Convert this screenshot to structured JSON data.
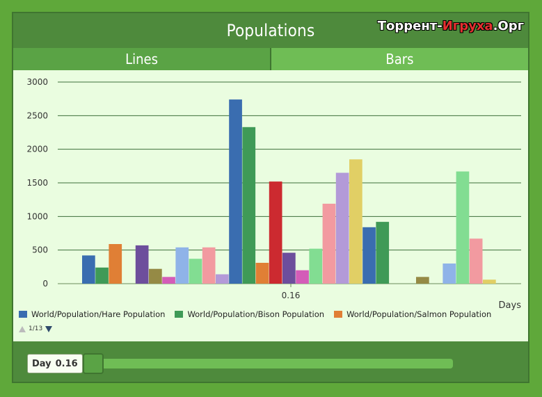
{
  "window": {
    "title": "Populations",
    "watermark_left": "Торрент-",
    "watermark_mid": "Игруха",
    "watermark_right": ".Орг"
  },
  "tabs": [
    {
      "label": "Lines"
    },
    {
      "label": "Bars"
    }
  ],
  "pager": {
    "text": "1/13"
  },
  "footer": {
    "day_label": "Day",
    "day_value": "0.16"
  },
  "slider": {
    "value_fraction": 0.0
  },
  "chart_data": {
    "type": "bar",
    "xlabel": "Days",
    "ylabel": "",
    "ylim": [
      0,
      3000
    ],
    "yticks": [
      0,
      500,
      1000,
      1500,
      2000,
      2500,
      3000
    ],
    "categories": [
      "0.16"
    ],
    "grid": true,
    "legend_position": "bottom-left",
    "legend": [
      {
        "name": "World/Population/Hare Population",
        "color": "#3a6db0"
      },
      {
        "name": "World/Population/Bison Population",
        "color": "#3f9a57"
      },
      {
        "name": "World/Population/Salmon Population",
        "color": "#e07f35"
      }
    ],
    "bars": [
      {
        "value": 420,
        "color": "#3a6db0"
      },
      {
        "value": 240,
        "color": "#3f9a57"
      },
      {
        "value": 590,
        "color": "#e07f35"
      },
      {
        "value": 0,
        "color": "#cc2a30"
      },
      {
        "value": 570,
        "color": "#6d4e9c"
      },
      {
        "value": 220,
        "color": "#958a45"
      },
      {
        "value": 100,
        "color": "#d45cb8"
      },
      {
        "value": 540,
        "color": "#8fb3e8"
      },
      {
        "value": 370,
        "color": "#82dd92"
      },
      {
        "value": 540,
        "color": "#f29aa0"
      },
      {
        "value": 140,
        "color": "#b39ad8"
      },
      {
        "value": 2740,
        "color": "#3a6db0"
      },
      {
        "value": 2330,
        "color": "#3f9a57"
      },
      {
        "value": 310,
        "color": "#e07f35"
      },
      {
        "value": 1520,
        "color": "#cc2a30"
      },
      {
        "value": 460,
        "color": "#6d4e9c"
      },
      {
        "value": 200,
        "color": "#d45cb8"
      },
      {
        "value": 520,
        "color": "#82dd92"
      },
      {
        "value": 1190,
        "color": "#f29aa0"
      },
      {
        "value": 1650,
        "color": "#b39ad8"
      },
      {
        "value": 1850,
        "color": "#e1cf65"
      },
      {
        "value": 840,
        "color": "#3a6db0"
      },
      {
        "value": 920,
        "color": "#3f9a57"
      },
      {
        "value": 0,
        "color": "#e07f35"
      },
      {
        "value": 0,
        "color": "#cc2a30"
      },
      {
        "value": 100,
        "color": "#958a45"
      },
      {
        "value": 0,
        "color": "#d45cb8"
      },
      {
        "value": 300,
        "color": "#8fb3e8"
      },
      {
        "value": 1670,
        "color": "#82dd92"
      },
      {
        "value": 670,
        "color": "#f29aa0"
      },
      {
        "value": 60,
        "color": "#e1cf65"
      }
    ]
  }
}
